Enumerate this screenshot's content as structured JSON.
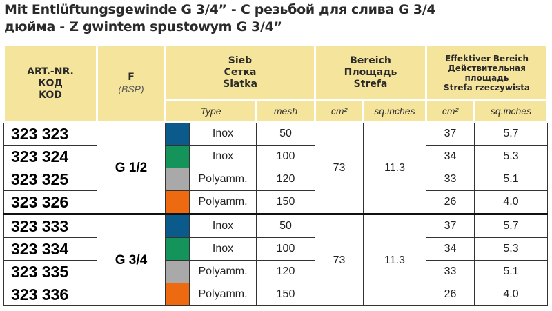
{
  "title": {
    "line1": "Mit Entlüftungsgewinde G 3/4”  - С резьбой для слива G 3/4",
    "line2": "дюйма - Z gwintem spustowym G 3/4”"
  },
  "header": {
    "art": [
      "ART.-NR.",
      "КОД",
      "KOD"
    ],
    "f": "F",
    "f_sub": "(BSP)",
    "sieb": [
      "Sieb",
      "Сетка",
      "Siatka"
    ],
    "bereich": [
      "Bereich",
      "Площадь",
      "Strefa"
    ],
    "eff": [
      "Effektiver Bereich",
      "Действительная",
      "площадь",
      "Strefa rzeczywista"
    ],
    "sub": {
      "type": "Type",
      "mesh": "mesh",
      "cm2": "cm²",
      "sq": "sq.inches",
      "cm2b": "cm²",
      "sqb": "sq.inches"
    }
  },
  "groups": [
    {
      "thread": "G 1/2",
      "area_cm2": "73",
      "area_sq": "11.3",
      "rows": [
        {
          "art": "323 323",
          "color": "#0a5a8c",
          "type": "Inox",
          "mesh": "50",
          "eff_cm2": "37",
          "eff_sq": "5.7"
        },
        {
          "art": "323 324",
          "color": "#14935a",
          "type": "Inox",
          "mesh": "100",
          "eff_cm2": "34",
          "eff_sq": "5.3"
        },
        {
          "art": "323 325",
          "color": "#a9a9a9",
          "type": "Polyamm.",
          "mesh": "120",
          "eff_cm2": "33",
          "eff_sq": "5.1"
        },
        {
          "art": "323 326",
          "color": "#ee6a10",
          "type": "Polyamm.",
          "mesh": "150",
          "eff_cm2": "26",
          "eff_sq": "4.0"
        }
      ]
    },
    {
      "thread": "G 3/4",
      "area_cm2": "73",
      "area_sq": "11.3",
      "rows": [
        {
          "art": "323 333",
          "color": "#0a5a8c",
          "type": "Inox",
          "mesh": "50",
          "eff_cm2": "37",
          "eff_sq": "5.7"
        },
        {
          "art": "323 334",
          "color": "#14935a",
          "type": "Inox",
          "mesh": "100",
          "eff_cm2": "34",
          "eff_sq": "5.3"
        },
        {
          "art": "323 335",
          "color": "#a9a9a9",
          "type": "Polyamm.",
          "mesh": "120",
          "eff_cm2": "33",
          "eff_sq": "5.1"
        },
        {
          "art": "323 336",
          "color": "#ee6a10",
          "type": "Polyamm.",
          "mesh": "150",
          "eff_cm2": "26",
          "eff_sq": "4.0"
        }
      ]
    }
  ]
}
